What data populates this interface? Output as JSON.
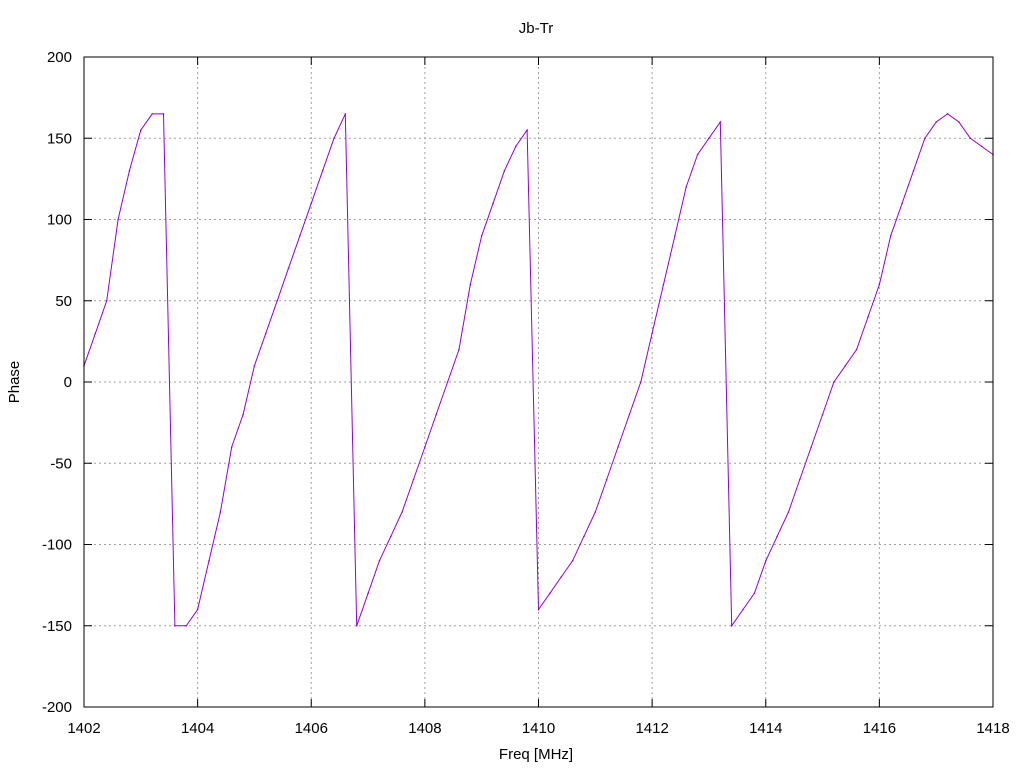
{
  "chart_data": {
    "type": "line",
    "title": "Jb-Tr",
    "xlabel": "Freq [MHz]",
    "ylabel": "Phase",
    "xlim": [
      1402,
      1418
    ],
    "ylim": [
      -200,
      200
    ],
    "xticks": [
      1402,
      1404,
      1406,
      1408,
      1410,
      1412,
      1414,
      1416,
      1418
    ],
    "yticks": [
      -200,
      -150,
      -100,
      -50,
      0,
      50,
      100,
      150,
      200
    ],
    "xtick_labels": [
      "1402",
      "1404",
      "1406",
      "1408",
      "1410",
      "1412",
      "1414",
      "1416",
      "1418"
    ],
    "ytick_labels": [
      "-200",
      "-150",
      "-100",
      "-50",
      "0",
      "50",
      "100",
      "150",
      "200"
    ],
    "grid": true,
    "line_color": "#9400d3",
    "series": [
      {
        "x": [
          1402.0,
          1402.2,
          1402.4,
          1402.6,
          1402.8,
          1403.0,
          1403.2,
          1403.4,
          1403.6,
          1403.8,
          1404.0,
          1404.2,
          1404.4,
          1404.6,
          1404.8,
          1405.0,
          1405.2,
          1405.4,
          1405.6,
          1405.8,
          1406.0,
          1406.2,
          1406.4,
          1406.6,
          1406.8,
          1407.0,
          1407.2,
          1407.4,
          1407.6,
          1407.8,
          1408.0,
          1408.2,
          1408.4,
          1408.6,
          1408.8,
          1409.0,
          1409.2,
          1409.4,
          1409.6,
          1409.8,
          1410.0,
          1410.2,
          1410.4,
          1410.6,
          1410.8,
          1411.0,
          1411.2,
          1411.4,
          1411.6,
          1411.8,
          1412.0,
          1412.2,
          1412.4,
          1412.6,
          1412.8,
          1413.0,
          1413.2,
          1413.4,
          1413.6,
          1413.8,
          1414.0,
          1414.2,
          1414.4,
          1414.6,
          1414.8,
          1415.0,
          1415.2,
          1415.4,
          1415.6,
          1415.8,
          1416.0,
          1416.2,
          1416.4,
          1416.6,
          1416.8,
          1417.0,
          1417.2,
          1417.4,
          1417.6,
          1417.8,
          1418.0
        ],
        "values": [
          10,
          30,
          50,
          100,
          130,
          155,
          165,
          165,
          -150,
          -150,
          -140,
          -110,
          -80,
          -40,
          -20,
          10,
          30,
          50,
          70,
          90,
          110,
          130,
          150,
          165,
          -150,
          -130,
          -110,
          -95,
          -80,
          -60,
          -40,
          -20,
          0,
          20,
          60,
          90,
          110,
          130,
          145,
          155,
          -140,
          -130,
          -120,
          -110,
          -95,
          -80,
          -60,
          -40,
          -20,
          0,
          30,
          60,
          90,
          120,
          140,
          150,
          160,
          -150,
          -140,
          -130,
          -110,
          -95,
          -80,
          -60,
          -40,
          -20,
          0,
          10,
          20,
          40,
          60,
          90,
          110,
          130,
          150,
          160,
          165,
          160,
          150,
          145,
          140
        ]
      }
    ]
  }
}
